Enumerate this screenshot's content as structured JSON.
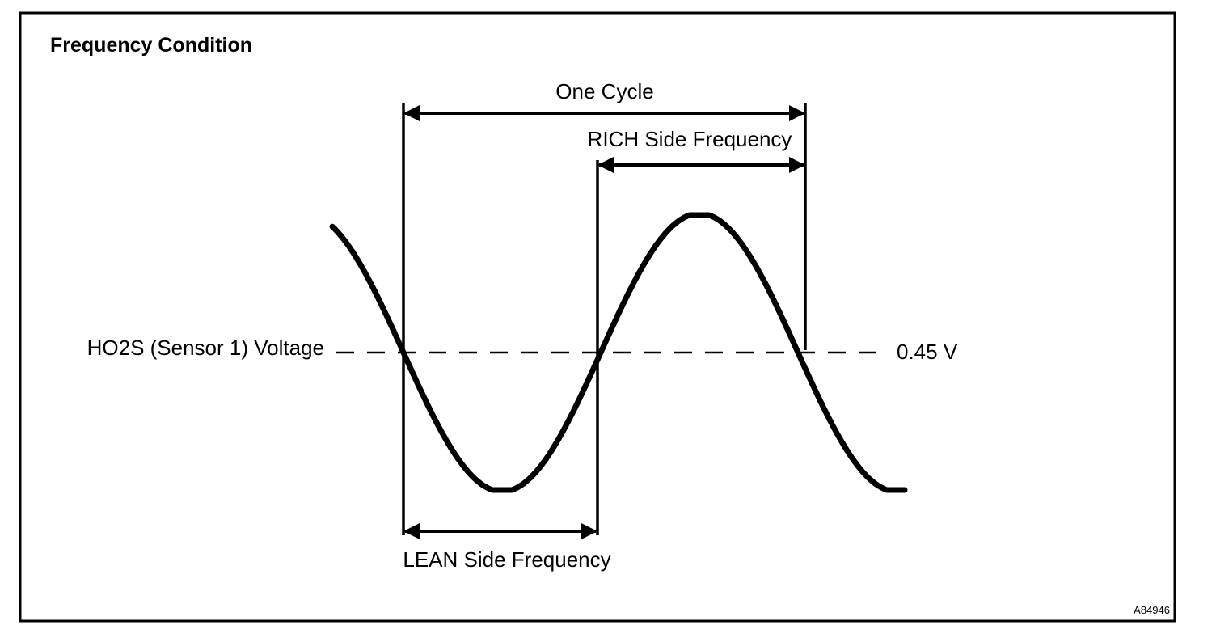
{
  "title": "Frequency Condition",
  "labels": {
    "one_cycle": "One Cycle",
    "rich_side": "RICH Side Frequency",
    "lean_side": "LEAN Side Frequency",
    "sensor_voltage": "HO2S (Sensor 1) Voltage",
    "threshold": "0.45 V"
  },
  "figure_code": "A84946",
  "colors": {
    "ink": "#000000",
    "background": "#ffffff"
  }
}
